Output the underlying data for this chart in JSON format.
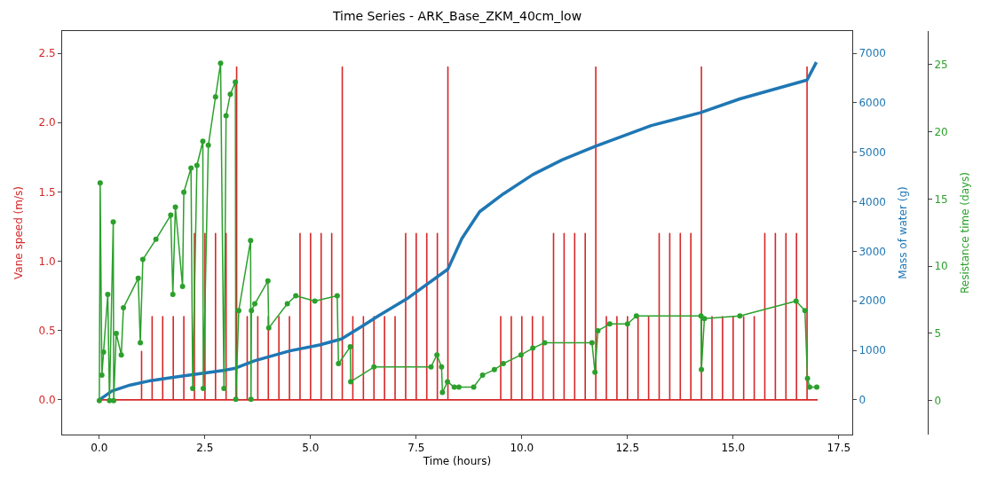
{
  "chart_data": {
    "type": "line",
    "title": "Time Series - ARK_Base_ZKM_40cm_low",
    "xlabel": "Time (hours)",
    "ylabel": "Vane speed (m/s)",
    "y2label": "Mass of water (g)",
    "y3label": "Resistance time (days)",
    "xlim": [
      -0.88,
      17.82
    ],
    "xticks": [
      {
        "value": 0,
        "label": "0.0"
      },
      2.5,
      {
        "value": 5,
        "label": "5.0"
      },
      7.5,
      {
        "value": 10,
        "label": "10.0"
      },
      12.5,
      {
        "value": 15,
        "label": "15.0"
      },
      17.5
    ],
    "ylim": [
      -0.25,
      2.66
    ],
    "yticks": [
      {
        "value": 0,
        "label": "0.0"
      },
      0.5,
      {
        "value": 1,
        "label": "1.0"
      },
      1.5,
      {
        "value": 2,
        "label": "2.0"
      },
      2.5
    ],
    "y2lim": [
      -700,
      7450
    ],
    "y2ticks": [
      0,
      1000,
      2000,
      3000,
      4000,
      5000,
      6000,
      7000
    ],
    "y3lim": [
      -2.53,
      27.5
    ],
    "y3ticks": [
      0,
      5,
      10,
      15,
      20,
      25
    ],
    "series": [
      {
        "color": "#d62728",
        "axis": "y",
        "x": [
          0,
          1.0,
          1.0,
          1.0,
          1.25,
          1.25,
          1.25,
          1.5,
          1.5,
          1.5,
          1.75,
          1.75,
          1.75,
          2.0,
          2.0,
          2.0,
          2.25,
          2.25,
          2.25,
          2.5,
          2.5,
          2.5,
          2.75,
          2.75,
          2.75,
          3.0,
          3.0,
          3.0,
          3.25,
          3.25,
          3.25,
          3.5,
          3.5,
          3.5,
          3.75,
          3.75,
          3.75,
          4.0,
          4.0,
          4.0,
          4.25,
          4.25,
          4.25,
          4.5,
          4.5,
          4.5,
          4.75,
          4.75,
          4.75,
          5.0,
          5.0,
          5.0,
          5.25,
          5.25,
          5.25,
          5.5,
          5.5,
          5.5,
          5.75,
          5.75,
          5.75,
          6.0,
          6.0,
          6.0,
          6.25,
          6.25,
          6.25,
          6.5,
          6.5,
          6.5,
          6.75,
          6.75,
          6.75,
          7.0,
          7.0,
          7.0,
          7.25,
          7.25,
          7.25,
          7.5,
          7.5,
          7.5,
          7.75,
          7.75,
          7.75,
          8.0,
          8.0,
          8.0,
          8.25,
          8.25,
          8.25,
          9.5,
          9.5,
          9.5,
          9.75,
          9.75,
          9.75,
          10.0,
          10.0,
          10.0,
          10.25,
          10.25,
          10.25,
          10.5,
          10.5,
          10.5,
          10.75,
          10.75,
          10.75,
          11.0,
          11.0,
          11.0,
          11.25,
          11.25,
          11.25,
          11.5,
          11.5,
          11.5,
          11.75,
          11.75,
          11.75,
          12.0,
          12.0,
          12.0,
          12.25,
          12.25,
          12.25,
          12.5,
          12.5,
          12.5,
          12.75,
          12.75,
          12.75,
          13.0,
          13.0,
          13.0,
          13.25,
          13.25,
          13.25,
          13.5,
          13.5,
          13.5,
          13.75,
          13.75,
          13.75,
          14.0,
          14.0,
          14.0,
          14.25,
          14.25,
          14.25,
          14.5,
          14.5,
          14.5,
          14.75,
          14.75,
          14.75,
          15.0,
          15.0,
          15.0,
          15.25,
          15.25,
          15.25,
          15.5,
          15.5,
          15.5,
          15.75,
          15.75,
          15.75,
          16.0,
          16.0,
          16.0,
          16.25,
          16.25,
          16.25,
          16.5,
          16.5,
          16.5,
          16.75,
          16.75,
          16.75,
          17.0
        ],
        "values": [
          0,
          0,
          0.35,
          0,
          0,
          0.6,
          0,
          0,
          0.6,
          0,
          0,
          0.6,
          0,
          0,
          0.6,
          0,
          0,
          1.2,
          0,
          0,
          1.2,
          0,
          0,
          1.2,
          0,
          0,
          1.2,
          0,
          0,
          2.4,
          0,
          0,
          0.6,
          0,
          0,
          0.6,
          0,
          0,
          0.6,
          0,
          0,
          0.6,
          0,
          0,
          0.6,
          0,
          0,
          1.2,
          0,
          0,
          1.2,
          0,
          0,
          1.2,
          0,
          0,
          1.2,
          0,
          0,
          2.4,
          0,
          0,
          0.6,
          0,
          0,
          0.6,
          0,
          0,
          0.6,
          0,
          0,
          0.6,
          0,
          0,
          0.6,
          0,
          0,
          1.2,
          0,
          0,
          1.2,
          0,
          0,
          1.2,
          0,
          0,
          1.2,
          0,
          0,
          2.4,
          0,
          0,
          0.6,
          0,
          0,
          0.6,
          0,
          0,
          0.6,
          0,
          0,
          0.6,
          0,
          0,
          0.6,
          0,
          0,
          1.2,
          0,
          0,
          1.2,
          0,
          0,
          1.2,
          0,
          0,
          1.2,
          0,
          0,
          2.4,
          0,
          0,
          0.6,
          0,
          0,
          0.6,
          0,
          0,
          0.6,
          0,
          0,
          0.6,
          0,
          0,
          0.6,
          0,
          0,
          1.2,
          0,
          0,
          1.2,
          0,
          0,
          1.2,
          0,
          0,
          1.2,
          0,
          0,
          2.4,
          0,
          0,
          0.6,
          0,
          0,
          0.6,
          0,
          0,
          0.6,
          0,
          0,
          0.6,
          0,
          0,
          0.6,
          0,
          0,
          1.2,
          0,
          0,
          1.2,
          0,
          0,
          1.2,
          0,
          0,
          1.2,
          0,
          0,
          2.4,
          0,
          0
        ]
      },
      {
        "color": "#1f77b4",
        "axis": "y2",
        "x": [
          0,
          0.3,
          0.73,
          1.22,
          1.71,
          2.2,
          2.97,
          3.22,
          3.67,
          4.51,
          5.21,
          5.73,
          6.19,
          6.61,
          7.31,
          8.25,
          8.58,
          9.0,
          9.56,
          10.26,
          10.96,
          11.73,
          13.06,
          14.22,
          15.16,
          16.75,
          16.97
        ],
        "values": [
          0,
          180,
          300,
          390,
          450,
          510,
          600,
          640,
          790,
          990,
          1110,
          1230,
          1470,
          1700,
          2060,
          2640,
          3260,
          3800,
          4160,
          4550,
          4850,
          5120,
          5540,
          5800,
          6080,
          6460,
          6820
        ]
      },
      {
        "color": "#2ca02c",
        "axis": "y3",
        "marker": "circle",
        "x": [
          0,
          0.02,
          0.06,
          0.1,
          0.2,
          0.24,
          0.33,
          0.34,
          0.4,
          0.52,
          0.57,
          0.92,
          0.97,
          1.03,
          1.34,
          1.69,
          1.74,
          1.8,
          1.97,
          2.0,
          2.17,
          2.21,
          2.31,
          2.45,
          2.46,
          2.58,
          2.75,
          2.87,
          2.95,
          3.0,
          3.1,
          3.22,
          3.23,
          3.3,
          3.58,
          3.59,
          3.6,
          3.68,
          3.99,
          4.01,
          4.45,
          4.65,
          5.1,
          5.63,
          5.66,
          5.94,
          5.95,
          6.5,
          7.85,
          7.99,
          8.1,
          8.12,
          8.24,
          8.4,
          8.51,
          8.86,
          9.07,
          9.35,
          9.56,
          9.98,
          10.26,
          10.54,
          11.66,
          11.73,
          11.8,
          12.08,
          12.5,
          12.71,
          14.24,
          14.25,
          14.32,
          15.16,
          16.49,
          16.7,
          16.76,
          16.81,
          16.98
        ],
        "values": [
          0,
          16.2,
          1.9,
          3.6,
          7.9,
          0,
          13.3,
          0,
          5.0,
          3.4,
          6.9,
          9.1,
          4.3,
          10.5,
          12.0,
          13.8,
          7.9,
          14.4,
          8.5,
          15.5,
          17.3,
          0.9,
          17.5,
          19.3,
          0.9,
          19.0,
          22.6,
          25.1,
          0.9,
          21.2,
          22.8,
          23.7,
          0.1,
          6.7,
          11.9,
          0.1,
          6.7,
          7.2,
          8.9,
          5.4,
          7.2,
          7.8,
          7.4,
          7.8,
          2.75,
          4.0,
          1.4,
          2.5,
          2.5,
          3.4,
          2.5,
          0.6,
          1.4,
          1.0,
          1.0,
          1.0,
          1.9,
          2.3,
          2.75,
          3.4,
          3.9,
          4.3,
          4.3,
          2.1,
          5.2,
          5.7,
          5.7,
          6.3,
          6.3,
          2.3,
          6.1,
          6.3,
          7.4,
          6.7,
          1.65,
          1.0,
          1.0
        ]
      }
    ]
  }
}
